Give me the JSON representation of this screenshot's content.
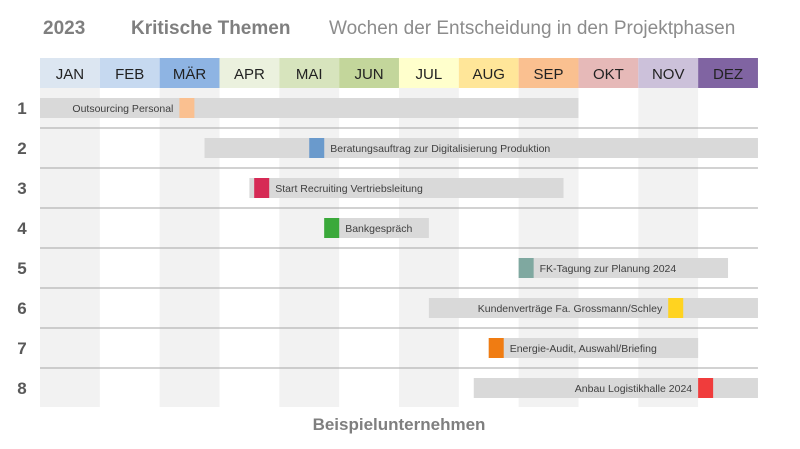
{
  "header": {
    "year": "2023",
    "title": "Kritische Themen",
    "subtitle": "Wochen der Entscheidung in den Projektphasen"
  },
  "footer": "Beispielunternehmen",
  "months": [
    {
      "label": "JAN",
      "color": "#dce6f1"
    },
    {
      "label": "FEB",
      "color": "#c6d9f0"
    },
    {
      "label": "MÄR",
      "color": "#8eb4e3"
    },
    {
      "label": "APR",
      "color": "#ebf1de"
    },
    {
      "label": "MAI",
      "color": "#d7e4bd"
    },
    {
      "label": "JUN",
      "color": "#c3d69b"
    },
    {
      "label": "JUL",
      "color": "#ffffcc"
    },
    {
      "label": "AUG",
      "color": "#ffe699"
    },
    {
      "label": "SEP",
      "color": "#fac090"
    },
    {
      "label": "OKT",
      "color": "#e6b9b8"
    },
    {
      "label": "NOV",
      "color": "#ccc1da"
    },
    {
      "label": "DEZ",
      "color": "#8064a2"
    }
  ],
  "chart_data": {
    "type": "gantt",
    "x_unit": "month (0 = start of January, 12 = end of December)",
    "xlim": [
      0,
      12
    ],
    "tasks": [
      {
        "row": "1",
        "label": "Outsourcing Personal",
        "start": 0.0,
        "end": 9.0,
        "milestone": 2.33,
        "color": "#fac090",
        "label_side": "left"
      },
      {
        "row": "2",
        "label": "Beratungsauftrag zur Digitalisierung Produktion",
        "start": 2.75,
        "end": 12.0,
        "milestone": 4.5,
        "color": "#6a9acc",
        "label_side": "right"
      },
      {
        "row": "3",
        "label": "Start Recruiting Vertriebsleitung",
        "start": 3.5,
        "end": 8.75,
        "milestone": 3.58,
        "color": "#d62a55",
        "label_side": "right"
      },
      {
        "row": "4",
        "label": "Bankgespräch",
        "start": 4.75,
        "end": 6.5,
        "milestone": 4.75,
        "color": "#3aa93a",
        "label_side": "right"
      },
      {
        "row": "5",
        "label": "FK-Tagung zur Planung 2024",
        "start": 8.0,
        "end": 11.5,
        "milestone": 8.0,
        "color": "#7fa8a0",
        "label_side": "right"
      },
      {
        "row": "6",
        "label": "Kundenverträge Fa. Grossmann/Schley",
        "start": 6.5,
        "end": 12.0,
        "milestone": 10.5,
        "color": "#ffd320",
        "label_side": "left"
      },
      {
        "row": "7",
        "label": "Energie-Audit, Auswahl/Briefing",
        "start": 7.5,
        "end": 11.0,
        "milestone": 7.5,
        "color": "#f07c12",
        "label_side": "right"
      },
      {
        "row": "8",
        "label": "Anbau Logistikhalle 2024",
        "start": 7.25,
        "end": 12.0,
        "milestone": 11.0,
        "color": "#f03c3c",
        "label_side": "left"
      }
    ]
  }
}
